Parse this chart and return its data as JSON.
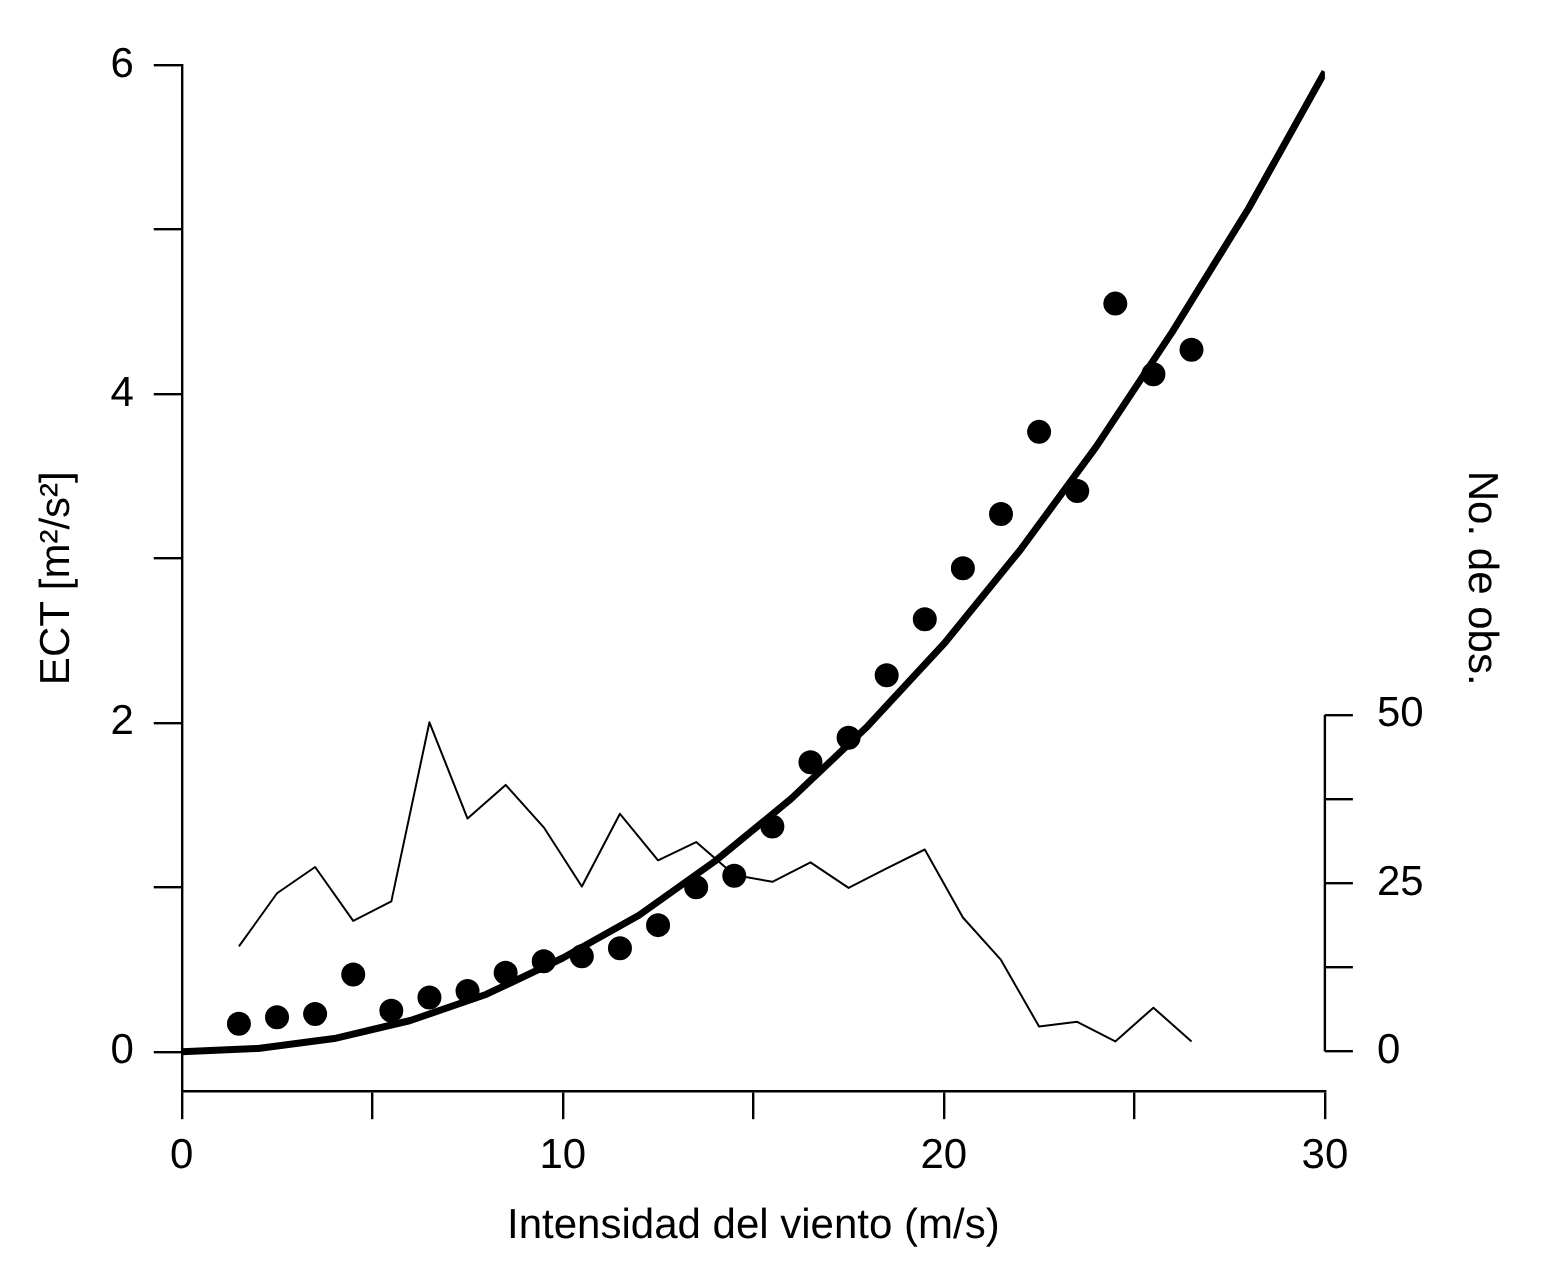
{
  "chart_data": {
    "type": "scatter",
    "xlabel": "Intensidad del viento (m/s)",
    "ylabel": "ECT [m²/s²]",
    "y2label": "No. de obs.",
    "xlim": [
      0,
      30
    ],
    "xticks": [
      0,
      {
        "value": 5,
        "label": null
      },
      10,
      {
        "value": 15,
        "label": null
      },
      20,
      {
        "value": 25,
        "label": null
      },
      30
    ],
    "ylim": [
      -0.24,
      6
    ],
    "yticks": [
      0,
      {
        "value": 1,
        "label": null
      },
      2,
      {
        "value": 3,
        "label": null
      },
      4,
      {
        "value": 5,
        "label": null
      },
      6
    ],
    "y2lim": [
      -5.9,
      146.5
    ],
    "y2ticks": [
      0,
      {
        "value": 12.5,
        "label": null
      },
      25,
      {
        "value": 37.5,
        "label": null
      },
      50
    ],
    "grid": false,
    "legend": false,
    "marker": "circle",
    "series": [
      {
        "color": "#000000",
        "x": [
          1.5,
          2.5,
          3.5,
          4.5,
          5.5,
          6.5,
          7.5,
          8.5,
          9.5,
          10.5,
          11.5,
          12.5,
          13.5,
          14.5,
          15.5,
          16.5,
          17.5,
          18.5,
          19.5,
          20.5,
          21.5,
          22.5,
          23.5,
          24.5,
          25.5,
          26.5
        ],
        "values": [
          0.17,
          0.21,
          0.23,
          0.47,
          0.25,
          0.33,
          0.37,
          0.48,
          0.55,
          0.58,
          0.63,
          0.77,
          1.0,
          1.07,
          1.37,
          1.76,
          1.91,
          2.29,
          2.63,
          2.94,
          3.27,
          3.77,
          3.41,
          4.55,
          4.12,
          4.27
        ]
      },
      {
        "type": "line",
        "marker": "none",
        "color": "#000000",
        "x": [
          0,
          2,
          4,
          6,
          8,
          10,
          12,
          14,
          16,
          18,
          20,
          22,
          24,
          26,
          28,
          30
        ],
        "values": [
          0,
          0.02,
          0.08,
          0.19,
          0.35,
          0.57,
          0.83,
          1.16,
          1.54,
          1.98,
          2.48,
          3.05,
          3.68,
          4.38,
          5.13,
          5.96
        ]
      },
      {
        "type": "line",
        "marker": "none",
        "axis": "y2",
        "color": "#000000",
        "x": [
          1.5,
          2.5,
          3.5,
          4.5,
          5.5,
          6.5,
          7.5,
          8.5,
          9.5,
          10.5,
          11.5,
          12.5,
          13.5,
          14.5,
          15.5,
          16.5,
          17.5,
          18.5,
          19.5,
          20.5,
          21.5,
          22.5,
          23.5,
          24.5,
          25.5,
          26.5
        ],
        "values": [
          15.6,
          23.5,
          27.4,
          19.4,
          22.3,
          48.9,
          34.6,
          39.6,
          33.3,
          24.5,
          35.3,
          28.4,
          31.1,
          26.2,
          25.2,
          28.1,
          24.3,
          27.2,
          30.0,
          19.9,
          13.6,
          3.7,
          4.4,
          1.5,
          6.5,
          1.5
        ]
      }
    ]
  }
}
